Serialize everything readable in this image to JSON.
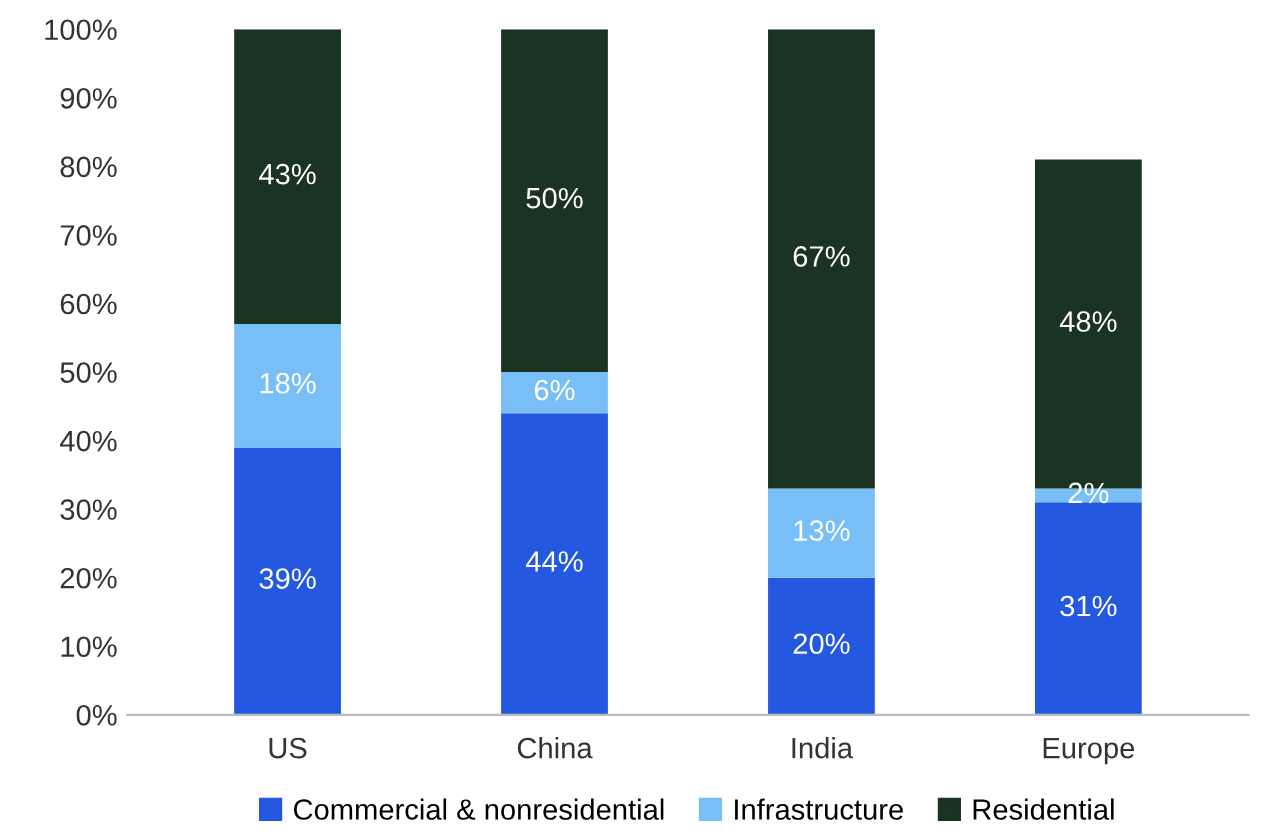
{
  "chart_data": {
    "type": "bar",
    "stacked": true,
    "categories": [
      "US",
      "China",
      "India",
      "Europe"
    ],
    "series": [
      {
        "name": "Commercial & nonresidential",
        "color": "#2458e0",
        "values": [
          39,
          44,
          20,
          31
        ],
        "value_labels": [
          "39%",
          "44%",
          "20%",
          "31%"
        ]
      },
      {
        "name": "Infrastructure",
        "color": "#79bff7",
        "values": [
          18,
          6,
          13,
          2
        ],
        "value_labels": [
          "18%",
          "6%",
          "13%",
          "2%"
        ]
      },
      {
        "name": "Residential",
        "color": "#1a3322",
        "values": [
          43,
          50,
          67,
          48
        ],
        "value_labels": [
          "43%",
          "50%",
          "67%",
          "48%"
        ]
      }
    ],
    "ylim": [
      0,
      100
    ],
    "yticks": [
      {
        "value": 0,
        "label": "0%"
      },
      {
        "value": 10,
        "label": "10%"
      },
      {
        "value": 20,
        "label": "20%"
      },
      {
        "value": 30,
        "label": "30%"
      },
      {
        "value": 40,
        "label": "40%"
      },
      {
        "value": 50,
        "label": "50%"
      },
      {
        "value": 60,
        "label": "60%"
      },
      {
        "value": 70,
        "label": "70%"
      },
      {
        "value": 80,
        "label": "80%"
      },
      {
        "value": 90,
        "label": "90%"
      },
      {
        "value": 100,
        "label": "100%"
      }
    ],
    "grid": false,
    "legend": "bottom"
  }
}
